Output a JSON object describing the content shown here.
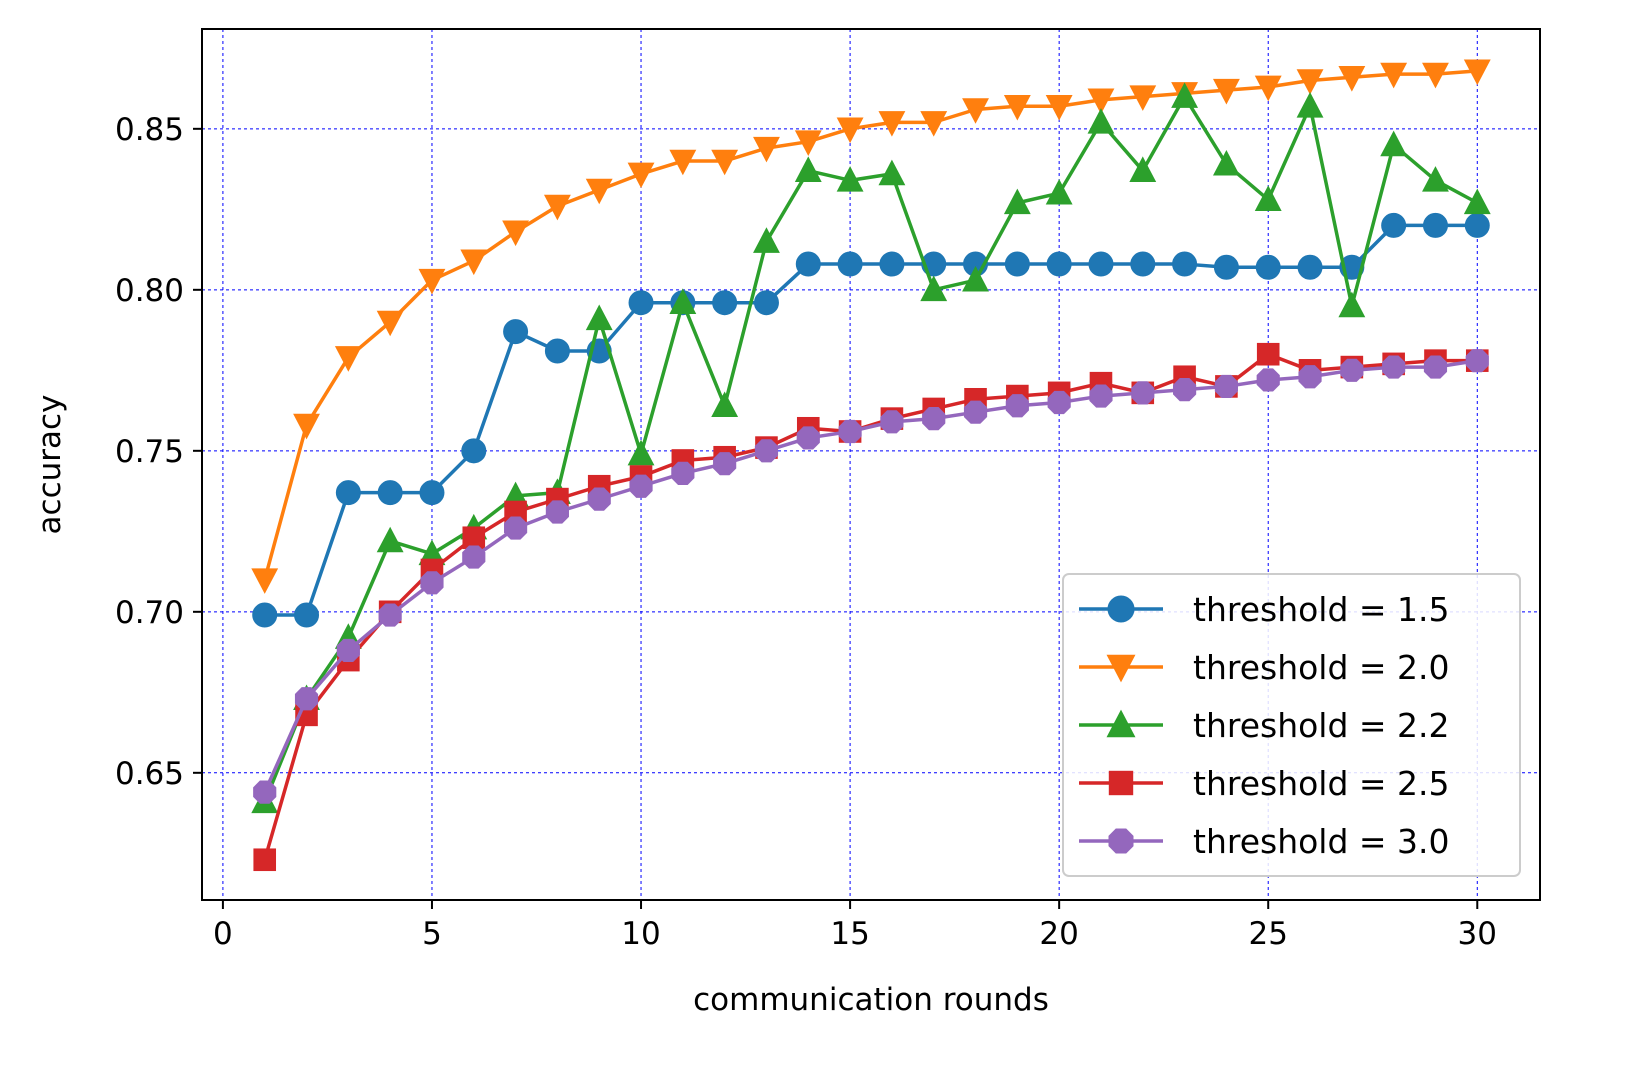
{
  "chart_data": {
    "type": "line",
    "xlabel": "communication rounds",
    "ylabel": "accuracy",
    "xlim": [
      -0.5,
      31.5
    ],
    "ylim": [
      0.6105,
      0.881
    ],
    "x_ticks": [
      "0",
      "5",
      "10",
      "15",
      "20",
      "25",
      "30"
    ],
    "y_ticks": [
      "0.65",
      "0.70",
      "0.75",
      "0.80",
      "0.85"
    ],
    "grid": true,
    "grid_color": "#0000ff",
    "legend_position": "lower-right",
    "x": [
      1,
      2,
      3,
      4,
      5,
      6,
      7,
      8,
      9,
      10,
      11,
      12,
      13,
      14,
      15,
      16,
      17,
      18,
      19,
      20,
      21,
      22,
      23,
      24,
      25,
      26,
      27,
      28,
      29,
      30
    ],
    "series": [
      {
        "name": "threshold = 1.5",
        "color": "#1f77b4",
        "marker": "circle",
        "values": [
          0.699,
          0.699,
          0.737,
          0.737,
          0.737,
          0.75,
          0.787,
          0.781,
          0.781,
          0.796,
          0.796,
          0.796,
          0.796,
          0.808,
          0.808,
          0.808,
          0.808,
          0.808,
          0.808,
          0.808,
          0.808,
          0.808,
          0.808,
          0.807,
          0.807,
          0.807,
          0.807,
          0.82,
          0.82,
          0.82
        ]
      },
      {
        "name": "threshold = 2.0",
        "color": "#ff7f0e",
        "marker": "triangle-down",
        "values": [
          0.71,
          0.758,
          0.779,
          0.79,
          0.803,
          0.809,
          0.818,
          0.826,
          0.831,
          0.836,
          0.84,
          0.84,
          0.844,
          0.846,
          0.85,
          0.852,
          0.852,
          0.856,
          0.857,
          0.857,
          0.859,
          0.86,
          0.861,
          0.862,
          0.863,
          0.865,
          0.866,
          0.867,
          0.867,
          0.868
        ]
      },
      {
        "name": "threshold = 2.2",
        "color": "#2ca02c",
        "marker": "triangle-up",
        "values": [
          0.641,
          0.673,
          0.692,
          0.722,
          0.718,
          0.726,
          0.736,
          0.737,
          0.791,
          0.749,
          0.796,
          0.764,
          0.815,
          0.837,
          0.834,
          0.836,
          0.8,
          0.803,
          0.827,
          0.83,
          0.852,
          0.837,
          0.86,
          0.839,
          0.828,
          0.857,
          0.795,
          0.845,
          0.834,
          0.827
        ]
      },
      {
        "name": "threshold = 2.5",
        "color": "#d62728",
        "marker": "square",
        "values": [
          0.623,
          0.668,
          0.685,
          0.7,
          0.713,
          0.723,
          0.731,
          0.735,
          0.739,
          0.742,
          0.747,
          0.748,
          0.751,
          0.757,
          0.756,
          0.76,
          0.763,
          0.766,
          0.767,
          0.768,
          0.771,
          0.768,
          0.773,
          0.77,
          0.78,
          0.775,
          0.776,
          0.777,
          0.778,
          0.778
        ]
      },
      {
        "name": "threshold = 3.0",
        "color": "#9467bd",
        "marker": "octagon",
        "values": [
          0.644,
          0.673,
          0.688,
          0.699,
          0.709,
          0.717,
          0.726,
          0.731,
          0.735,
          0.739,
          0.743,
          0.746,
          0.75,
          0.754,
          0.756,
          0.759,
          0.76,
          0.762,
          0.764,
          0.765,
          0.767,
          0.768,
          0.769,
          0.77,
          0.772,
          0.773,
          0.775,
          0.776,
          0.776,
          0.778
        ]
      }
    ]
  }
}
